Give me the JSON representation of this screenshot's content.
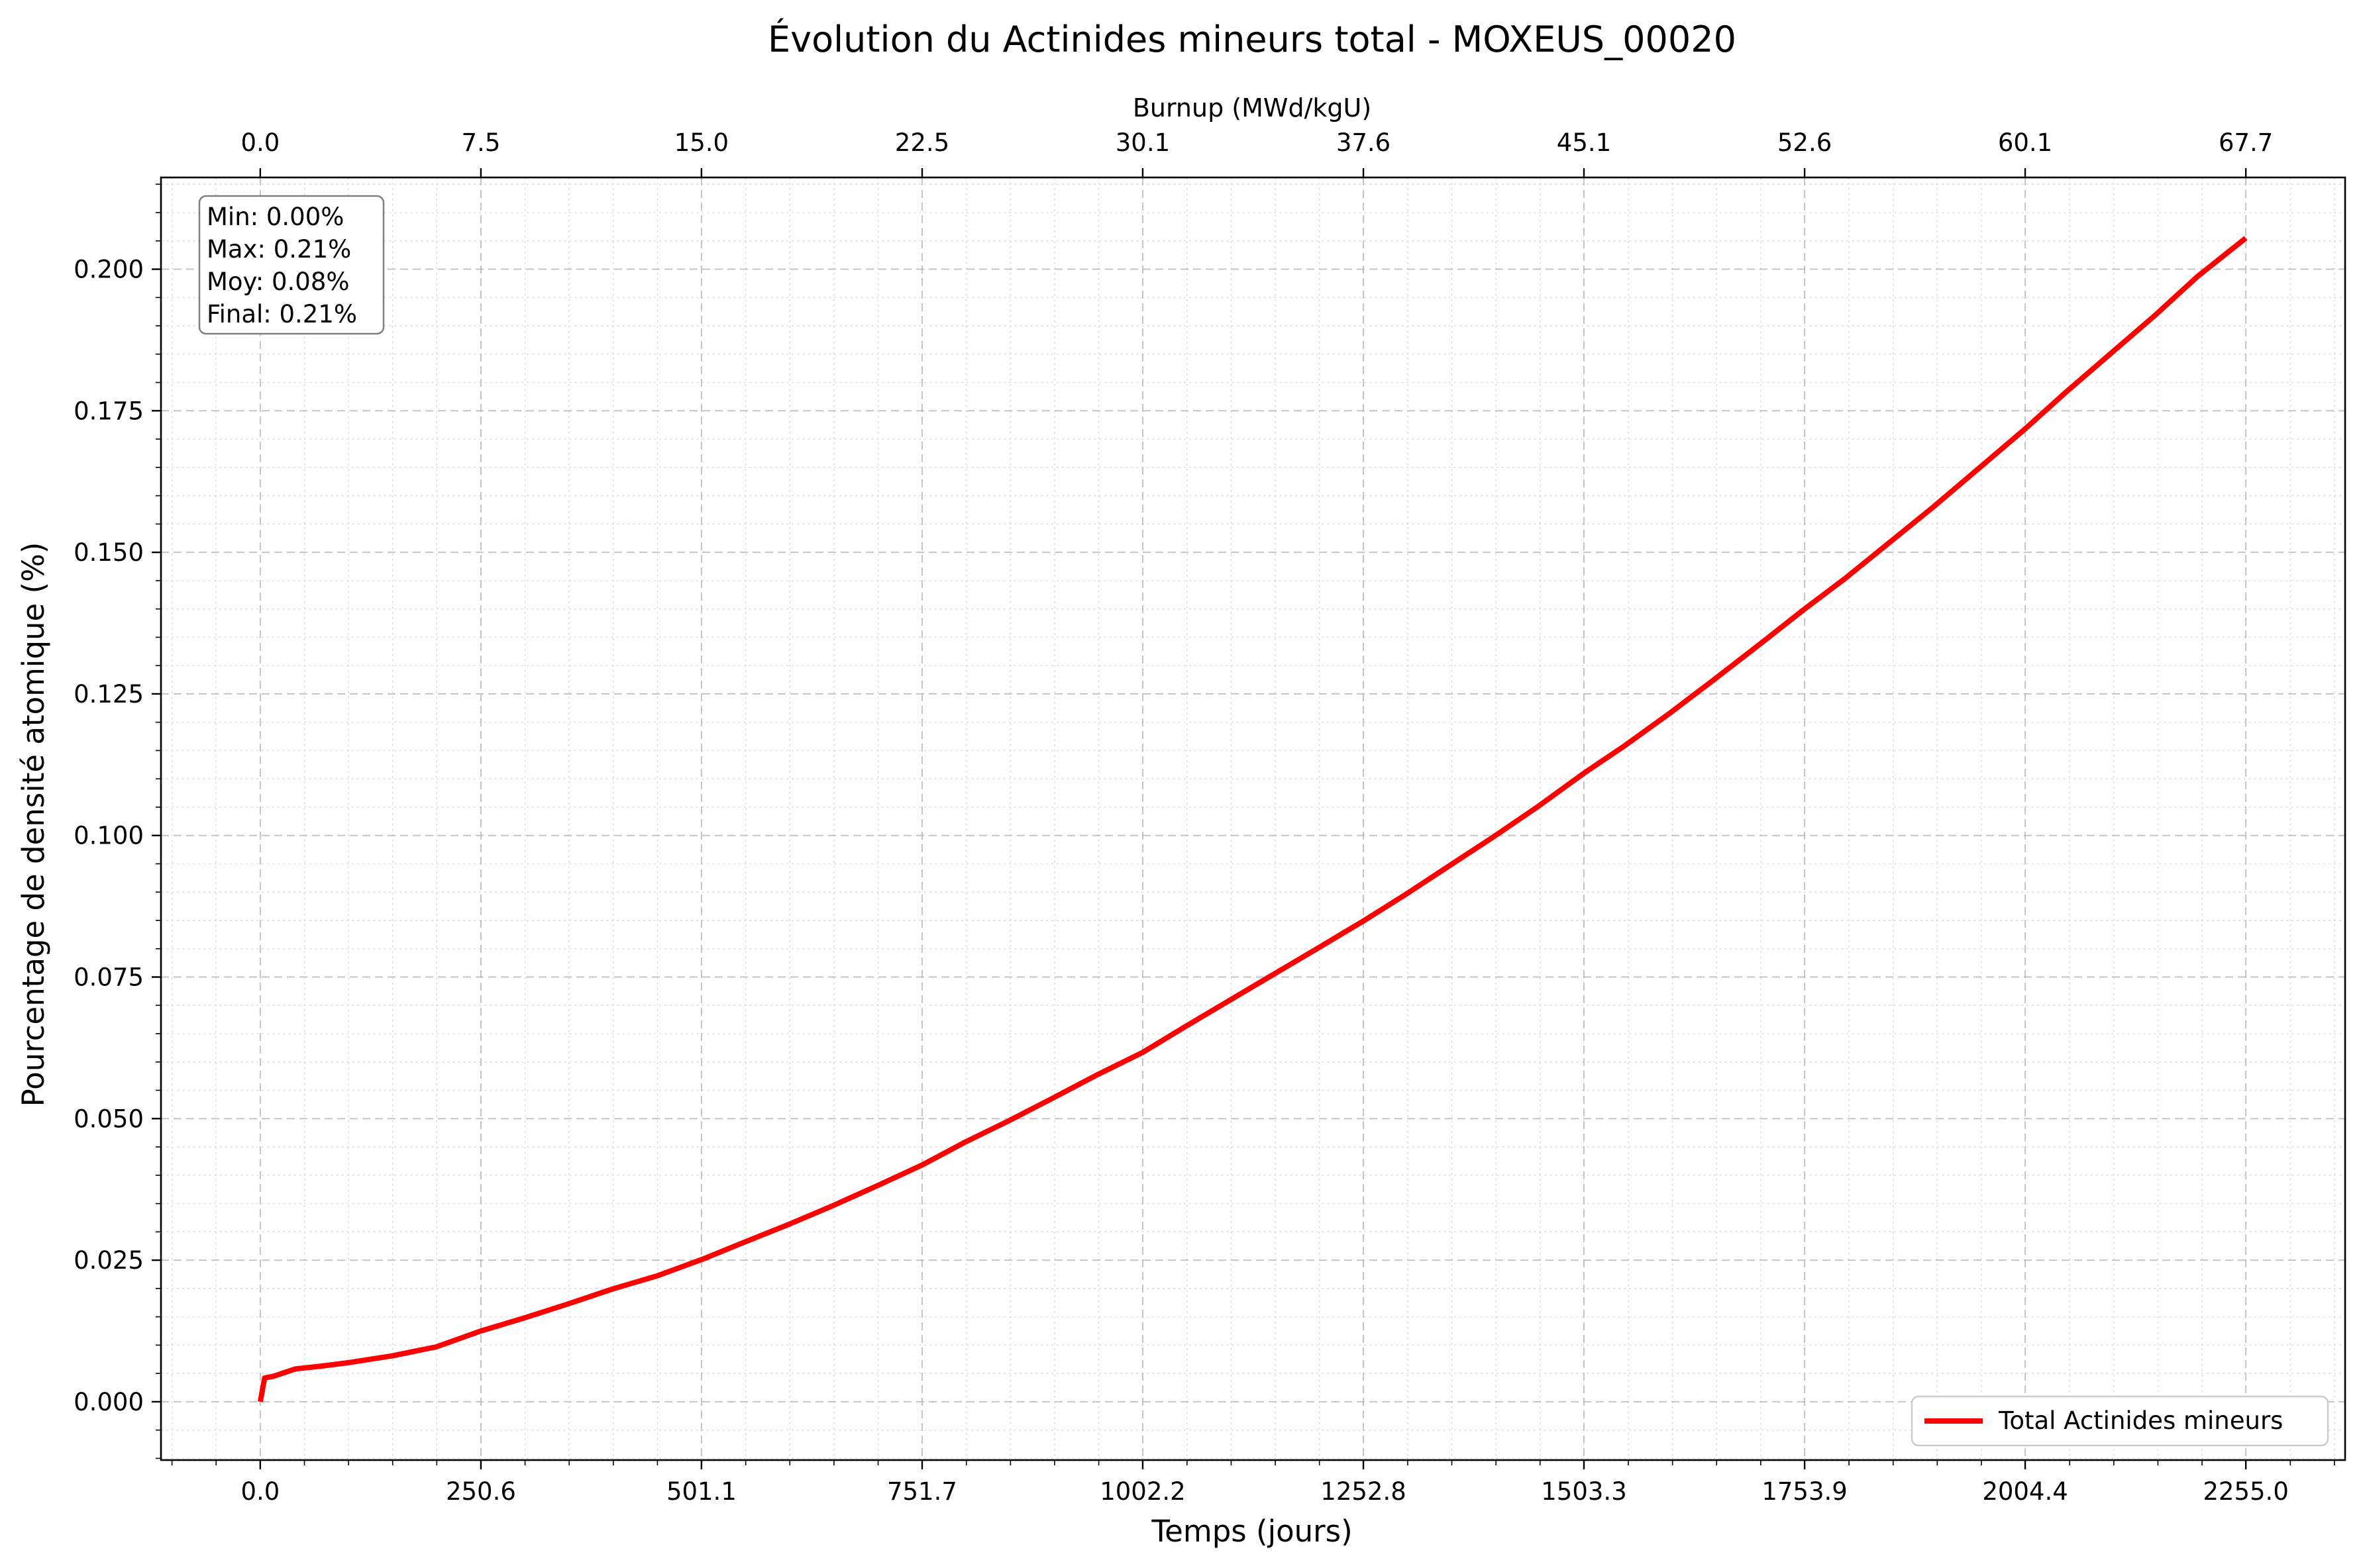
{
  "chart_data": {
    "type": "line",
    "title": "Évolution du Actinides mineurs total - MOXEUS_00020",
    "xlabel": "Temps (jours)",
    "ylabel": "Pourcentage de densité atomique (%)",
    "top_xlabel": "Burnup (MWd/kgU)",
    "xlim": [
      -112.75,
      2367.75
    ],
    "ylim": [
      -0.0103,
      0.2162
    ],
    "x_ticks": [
      0.0,
      250.6,
      501.1,
      751.7,
      1002.2,
      1252.8,
      1503.3,
      1753.9,
      2004.4,
      2255.0
    ],
    "x_tick_labels": [
      "0.0",
      "250.6",
      "501.1",
      "751.7",
      "1002.2",
      "1252.8",
      "1503.3",
      "1753.9",
      "2004.4",
      "2255.0"
    ],
    "top_x_tick_labels": [
      "0.0",
      "7.5",
      "15.0",
      "22.5",
      "30.1",
      "37.6",
      "45.1",
      "52.6",
      "60.1",
      "67.7"
    ],
    "y_ticks": [
      0.0,
      0.025,
      0.05,
      0.075,
      0.1,
      0.125,
      0.15,
      0.175,
      0.2
    ],
    "y_tick_labels": [
      "0.000",
      "0.025",
      "0.050",
      "0.075",
      "0.100",
      "0.125",
      "0.150",
      "0.175",
      "0.200"
    ],
    "grid": true,
    "legend_placement": "lower-right",
    "series": [
      {
        "name": "Total Actinides mineurs",
        "color": "#ff0000",
        "x": [
          0,
          5,
          15,
          40,
          70,
          100,
          150,
          200,
          250.6,
          300,
          350,
          400,
          450,
          501.1,
          550,
          600,
          650,
          700,
          751.7,
          800,
          850,
          900,
          950,
          1002.2,
          1050,
          1100,
          1150,
          1200,
          1252.8,
          1300,
          1350,
          1400,
          1450,
          1503.3,
          1550,
          1600,
          1650,
          1700,
          1753.9,
          1800,
          1850,
          1900,
          1950,
          2004.4,
          2050,
          2100,
          2150,
          2200,
          2255.0
        ],
        "y": [
          0.0,
          0.0042,
          0.0045,
          0.0058,
          0.0063,
          0.0069,
          0.0081,
          0.0097,
          0.0125,
          0.0148,
          0.0173,
          0.0199,
          0.0222,
          0.0251,
          0.0282,
          0.0313,
          0.0346,
          0.0381,
          0.0418,
          0.0458,
          0.0496,
          0.0536,
          0.0577,
          0.0617,
          0.0662,
          0.0708,
          0.0754,
          0.08,
          0.0849,
          0.0895,
          0.0946,
          0.0997,
          0.105,
          0.111,
          0.1159,
          0.1215,
          0.1274,
          0.1334,
          0.14,
          0.1454,
          0.1517,
          0.158,
          0.1646,
          0.1718,
          0.1782,
          0.1849,
          0.1916,
          0.1987,
          0.2055
        ]
      }
    ],
    "stats_box": {
      "min": "Min: 0.00%",
      "max": "Max: 0.21%",
      "moy": "Moy: 0.08%",
      "final": "Final: 0.21%"
    }
  }
}
